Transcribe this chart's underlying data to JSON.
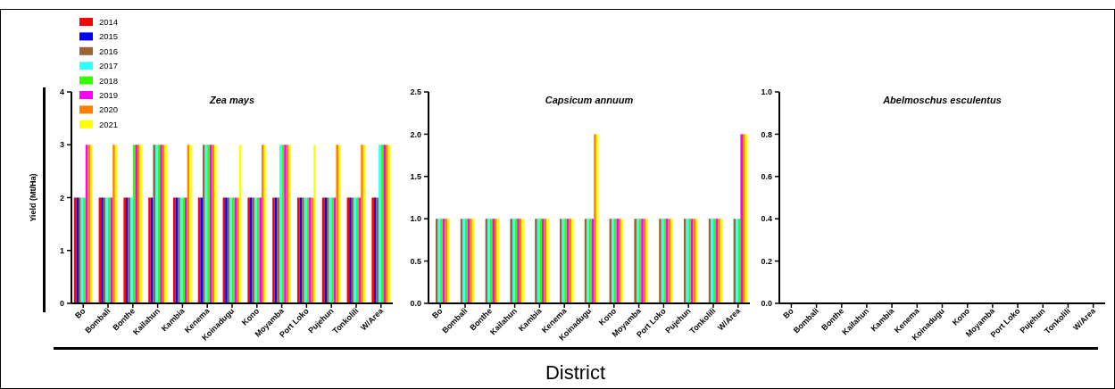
{
  "chart_data": [
    {
      "type": "bar",
      "title": "Zea mays",
      "ylabel": "Yield (Mt/Ha)",
      "legend": "top left",
      "categories": [
        "Bo",
        "Bombali",
        "Bonthe",
        "Kailahun",
        "Kambia",
        "Kenema",
        "Koinadugu",
        "Kono",
        "Moyamba",
        "Port Loko",
        "Pujehun",
        "Tonkolili",
        "W/Area"
      ],
      "ylim": [
        0,
        4
      ],
      "yticks": [
        0,
        1,
        2,
        3,
        4
      ],
      "series": [
        {
          "name": "2014",
          "color": "#ff0000",
          "values": [
            2,
            2,
            2,
            2,
            2,
            2,
            2,
            2,
            2,
            2,
            2,
            2,
            2
          ]
        },
        {
          "name": "2015",
          "color": "#0000ff",
          "values": [
            2,
            2,
            2,
            2,
            2,
            2,
            2,
            2,
            2,
            2,
            2,
            2,
            2
          ]
        },
        {
          "name": "2016",
          "color": "#9c6430",
          "values": [
            2,
            2,
            2,
            3,
            2,
            3,
            2,
            2,
            2,
            2,
            2,
            2,
            2
          ]
        },
        {
          "name": "2017",
          "color": "#33ffff",
          "values": [
            2,
            2,
            2,
            3,
            2,
            3,
            2,
            2,
            3,
            2,
            2,
            2,
            3
          ]
        },
        {
          "name": "2018",
          "color": "#33ff00",
          "values": [
            2,
            2,
            3,
            3,
            2,
            3,
            2,
            2,
            3,
            2,
            2,
            2,
            3
          ]
        },
        {
          "name": "2019",
          "color": "#ff00ff",
          "values": [
            3,
            2,
            3,
            3,
            2,
            3,
            2,
            2,
            3,
            2,
            2,
            2,
            3
          ]
        },
        {
          "name": "2020",
          "color": "#ff8000",
          "values": [
            3,
            3,
            3,
            3,
            3,
            3,
            2,
            3,
            3,
            2,
            3,
            3,
            3
          ]
        },
        {
          "name": "2021",
          "color": "#ffff00",
          "values": [
            3,
            3,
            3,
            3,
            3,
            3,
            3,
            3,
            3,
            3,
            3,
            3,
            3
          ]
        }
      ]
    },
    {
      "type": "bar",
      "title": "Capsicum annuum",
      "xlabel": "District",
      "categories": [
        "Bo",
        "Bombali",
        "Bonthe",
        "Kailahun",
        "Kambia",
        "Kenema",
        "Koinadugu",
        "Kono",
        "Moyamba",
        "Port Loko",
        "Pujehun",
        "Tonkolili",
        "W/Area"
      ],
      "ylim": [
        0,
        2.5
      ],
      "yticks": [
        {
          "value": 0,
          "label": "0.0"
        },
        {
          "value": 0.5,
          "label": "0.5"
        },
        {
          "value": 1,
          "label": "1.0"
        },
        {
          "value": 1.5,
          "label": "1.5"
        },
        {
          "value": 2,
          "label": "2.0"
        },
        {
          "value": 2.5,
          "label": "2.5"
        }
      ],
      "series": [
        {
          "color": "#ff0000",
          "values": [
            0,
            0,
            0,
            0,
            0,
            0,
            0,
            0,
            0,
            0,
            0,
            0,
            0
          ]
        },
        {
          "color": "#0000ff",
          "values": [
            0,
            0,
            0,
            0,
            0,
            0,
            0,
            0,
            0,
            0,
            0,
            0,
            0
          ]
        },
        {
          "color": "#9c6430",
          "values": [
            1,
            1,
            1,
            1,
            1,
            1,
            1,
            1,
            1,
            1,
            1,
            1,
            1
          ]
        },
        {
          "color": "#33ffff",
          "values": [
            1,
            1,
            1,
            1,
            1,
            1,
            1,
            1,
            1,
            1,
            1,
            1,
            1
          ]
        },
        {
          "color": "#33ff00",
          "values": [
            1,
            1,
            1,
            1,
            1,
            1,
            1,
            1,
            1,
            1,
            1,
            1,
            1
          ]
        },
        {
          "color": "#ff00ff",
          "values": [
            1,
            1,
            1,
            1,
            1,
            1,
            1,
            1,
            1,
            1,
            1,
            1,
            2
          ]
        },
        {
          "color": "#ff8000",
          "values": [
            1,
            1,
            1,
            1,
            1,
            1,
            2,
            1,
            1,
            1,
            1,
            1,
            2
          ]
        },
        {
          "color": "#ffff00",
          "values": [
            1,
            1,
            1,
            1,
            1,
            1,
            2,
            1,
            1,
            1,
            1,
            1,
            2
          ]
        }
      ]
    },
    {
      "type": "bar",
      "title": "Abelmoschus esculentus",
      "categories": [
        "Bo",
        "Bombali",
        "Bonthe",
        "Kailahun",
        "Kambia",
        "Kenema",
        "Koinadugu",
        "Kono",
        "Moyamba",
        "Port Loko",
        "Pujehun",
        "Tonkolili",
        "W/Area"
      ],
      "ylim": [
        0,
        1
      ],
      "yticks": [
        {
          "value": 0,
          "label": "0.0"
        },
        {
          "value": 0.2,
          "label": "0.2"
        },
        {
          "value": 0.4,
          "label": "0.4"
        },
        {
          "value": 0.6,
          "label": "0.6"
        },
        {
          "value": 0.8,
          "label": "0.8"
        },
        {
          "value": 1,
          "label": "1.0"
        }
      ],
      "series": [
        {
          "color": "#ff0000",
          "values": [
            0,
            0,
            0,
            0,
            0,
            0,
            0,
            0,
            0,
            0,
            0,
            0,
            0
          ]
        },
        {
          "color": "#0000ff",
          "values": [
            0,
            0,
            0,
            0,
            0,
            0,
            0,
            0,
            0,
            0,
            0,
            0,
            0
          ]
        },
        {
          "color": "#9c6430",
          "values": [
            0,
            0,
            0,
            0,
            0,
            0,
            0,
            0,
            0,
            0,
            0,
            0,
            0
          ]
        },
        {
          "color": "#33ffff",
          "values": [
            0,
            0,
            0,
            0,
            0,
            0,
            0,
            0,
            0,
            0,
            0,
            0,
            0
          ]
        },
        {
          "color": "#33ff00",
          "values": [
            0,
            0,
            0,
            0,
            0,
            0,
            0,
            0,
            0,
            0,
            0,
            0,
            0
          ]
        },
        {
          "color": "#ff00ff",
          "values": [
            0,
            0,
            0,
            0,
            0,
            0,
            0,
            0,
            0,
            0,
            0,
            0,
            0
          ]
        },
        {
          "color": "#ff8000",
          "values": [
            0,
            0,
            0,
            0,
            0,
            0,
            0,
            0,
            0,
            0,
            0,
            0,
            0
          ]
        },
        {
          "color": "#ffff00",
          "values": [
            0,
            0,
            0,
            0,
            0,
            0,
            0,
            0,
            0,
            0,
            0,
            0,
            0
          ]
        }
      ]
    }
  ]
}
